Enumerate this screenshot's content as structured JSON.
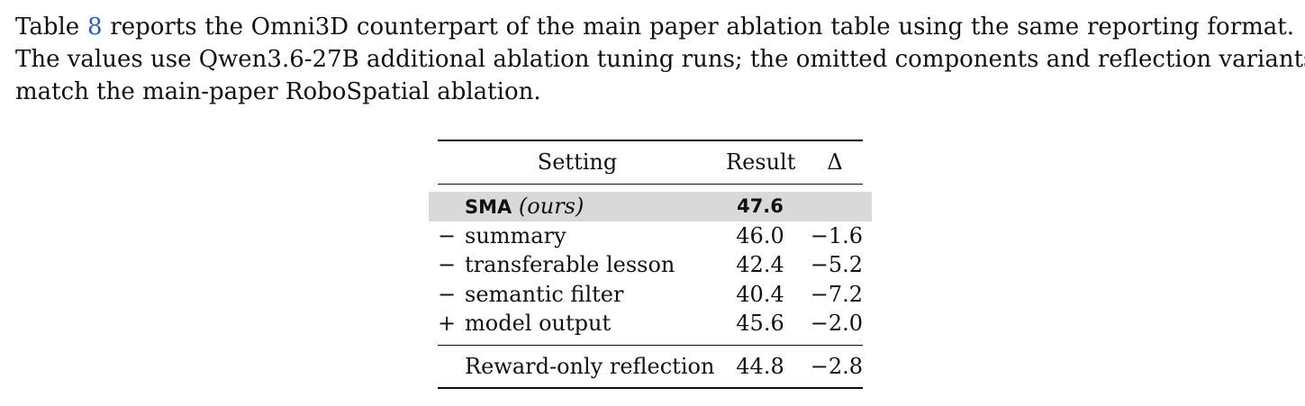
{
  "paragraph": {
    "line1_pre": "Table ",
    "line1_ref": "8",
    "line1_post": " reports the Omni3D counterpart of the main paper ablation table using the same reporting format.",
    "line2": "The values use Qwen3.6-27B additional ablation tuning runs; the omitted components and reflection variants",
    "line3": "match the main-paper RoboSpatial ablation."
  },
  "table": {
    "headers": {
      "setting": "Setting",
      "result": "Result",
      "delta": "Δ"
    },
    "highlight_color": "#d9d9d9",
    "main_row": {
      "method": "SMA",
      "tag": "(ours)",
      "result": "47.6",
      "delta": ""
    },
    "rows": [
      {
        "op": "−",
        "setting": "summary",
        "result": "46.0",
        "delta": "−1.6"
      },
      {
        "op": "−",
        "setting": "transferable lesson",
        "result": "42.4",
        "delta": "−5.2"
      },
      {
        "op": "−",
        "setting": "semantic filter",
        "result": "40.4",
        "delta": "−7.2"
      },
      {
        "op": "+",
        "setting": "model output",
        "result": "45.6",
        "delta": "−2.0"
      }
    ],
    "last_row": {
      "setting": "Reward-only reflection",
      "result": "44.8",
      "delta": "−2.8"
    }
  }
}
